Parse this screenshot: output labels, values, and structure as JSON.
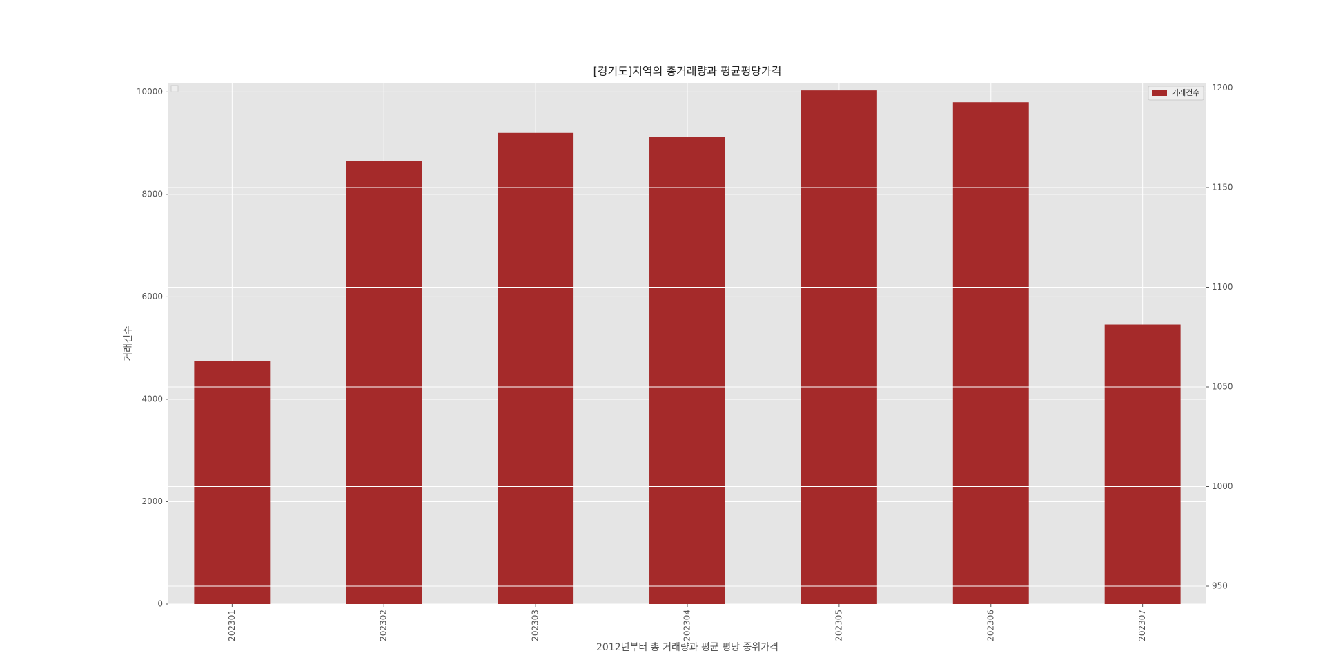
{
  "chart_data": {
    "type": "bar",
    "title": "[경기도]지역의 총거래량과 평균평당가격",
    "x_label": "2012년부터 총 거래량과 평균 평당 중위가격",
    "y_label": "거래건수",
    "categories": [
      "202301",
      "202302",
      "202303",
      "202304",
      "202305",
      "202306",
      "202307"
    ],
    "series": [
      {
        "name": "거래건수",
        "color": "#a52a2a",
        "values": [
          4750,
          8650,
          9200,
          9120,
          10030,
          9800,
          5460
        ]
      }
    ],
    "ylim": [
      0,
      10180
    ],
    "yticks": [
      0,
      2000,
      4000,
      6000,
      8000,
      10000
    ],
    "y2lim": [
      941,
      1202.6
    ],
    "y2ticks": [
      950,
      1000,
      1050,
      1100,
      1150,
      1200
    ],
    "grid": true,
    "legend": "upper right"
  }
}
